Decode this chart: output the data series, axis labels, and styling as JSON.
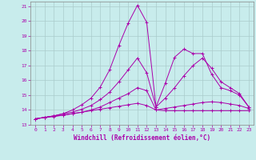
{
  "xlabel": "Windchill (Refroidissement éolien,°C)",
  "background_color": "#c8ecec",
  "grid_color": "#aacccc",
  "line_color": "#aa00aa",
  "xlim": [
    -0.5,
    23.5
  ],
  "ylim": [
    13,
    21.3
  ],
  "xticks": [
    0,
    1,
    2,
    3,
    4,
    5,
    6,
    7,
    8,
    9,
    10,
    11,
    12,
    13,
    14,
    15,
    16,
    17,
    18,
    19,
    20,
    21,
    22,
    23
  ],
  "yticks": [
    13,
    14,
    15,
    16,
    17,
    18,
    19,
    20,
    21
  ],
  "series": [
    {
      "x": [
        0,
        1,
        2,
        3,
        4,
        5,
        6,
        7,
        8,
        9,
        10,
        11,
        12,
        13,
        14,
        15,
        16,
        17,
        18,
        19,
        20,
        21,
        22,
        23
      ],
      "y": [
        13.4,
        13.5,
        13.6,
        13.65,
        13.75,
        13.85,
        13.95,
        14.05,
        14.15,
        14.25,
        14.35,
        14.45,
        14.3,
        14.0,
        13.95,
        13.95,
        13.95,
        13.95,
        13.95,
        13.95,
        13.95,
        13.95,
        13.95,
        13.95
      ]
    },
    {
      "x": [
        0,
        1,
        2,
        3,
        4,
        5,
        6,
        7,
        8,
        9,
        10,
        11,
        12,
        13,
        14,
        15,
        16,
        17,
        18,
        19,
        20,
        21,
        22,
        23
      ],
      "y": [
        13.4,
        13.5,
        13.55,
        13.65,
        13.75,
        13.85,
        14.0,
        14.2,
        14.5,
        14.8,
        15.1,
        15.5,
        15.3,
        14.0,
        14.1,
        14.2,
        14.3,
        14.4,
        14.5,
        14.55,
        14.5,
        14.4,
        14.3,
        14.1
      ]
    },
    {
      "x": [
        0,
        1,
        2,
        3,
        4,
        5,
        6,
        7,
        8,
        9,
        10,
        11,
        12,
        13,
        14,
        15,
        16,
        17,
        18,
        19,
        20,
        21,
        22,
        23
      ],
      "y": [
        13.4,
        13.5,
        13.6,
        13.75,
        13.85,
        14.05,
        14.3,
        14.7,
        15.2,
        15.9,
        16.7,
        17.5,
        16.5,
        14.2,
        14.8,
        15.5,
        16.3,
        17.0,
        17.5,
        16.8,
        15.9,
        15.5,
        15.1,
        14.2
      ]
    },
    {
      "x": [
        0,
        1,
        2,
        3,
        4,
        5,
        6,
        7,
        8,
        9,
        10,
        11,
        12,
        13,
        14,
        15,
        16,
        17,
        18,
        19,
        20,
        21,
        22,
        23
      ],
      "y": [
        13.4,
        13.5,
        13.6,
        13.75,
        14.0,
        14.35,
        14.8,
        15.55,
        16.7,
        18.35,
        19.85,
        21.05,
        19.9,
        14.2,
        15.8,
        17.55,
        18.1,
        17.8,
        17.8,
        16.4,
        15.5,
        15.3,
        15.0,
        14.2
      ]
    }
  ]
}
